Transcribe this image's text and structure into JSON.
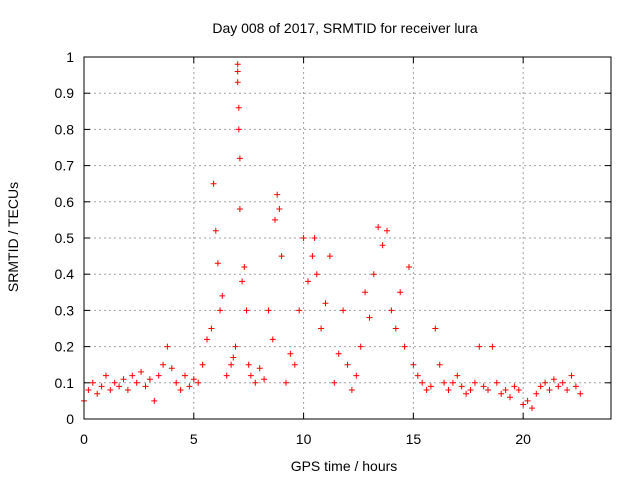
{
  "chart_data": {
    "type": "scatter",
    "title": "Day 008 of 2017, SRMTID for receiver lura",
    "xlabel": "GPS time / hours",
    "ylabel": "SRMTID / TECUs",
    "xlim": [
      0,
      24
    ],
    "ylim": [
      0,
      1
    ],
    "xticks": [
      0,
      5,
      10,
      15,
      20
    ],
    "xtick_labels": [
      "0",
      "5",
      "10",
      "15",
      "20"
    ],
    "yticks": [
      0,
      0.1,
      0.2,
      0.3,
      0.4,
      0.5,
      0.6,
      0.7,
      0.8,
      0.9,
      1
    ],
    "ytick_labels": [
      "0",
      "0.1",
      "0.2",
      "0.3",
      "0.4",
      "0.5",
      "0.6",
      "0.7",
      "0.8",
      "0.9",
      "1"
    ],
    "grid": true,
    "legend": "none",
    "marker": "+",
    "series": [
      {
        "name": "SRMTID",
        "color": "#ff0000",
        "x": [
          0.0,
          0.2,
          0.4,
          0.6,
          0.8,
          1.0,
          1.2,
          1.4,
          1.6,
          1.8,
          2.0,
          2.2,
          2.4,
          2.6,
          2.8,
          3.0,
          3.2,
          3.4,
          3.6,
          3.8,
          4.0,
          4.2,
          4.4,
          4.6,
          4.8,
          5.0,
          5.2,
          5.4,
          5.6,
          5.8,
          5.9,
          6.0,
          6.1,
          6.2,
          6.3,
          6.5,
          6.7,
          6.8,
          6.9,
          7.0,
          7.0,
          7.0,
          7.05,
          7.05,
          7.1,
          7.1,
          7.2,
          7.3,
          7.4,
          7.5,
          7.6,
          7.8,
          8.0,
          8.2,
          8.4,
          8.6,
          8.7,
          8.8,
          8.9,
          9.0,
          9.2,
          9.4,
          9.6,
          9.8,
          10.0,
          10.2,
          10.4,
          10.5,
          10.6,
          10.8,
          11.0,
          11.2,
          11.4,
          11.6,
          11.8,
          12.0,
          12.2,
          12.4,
          12.6,
          12.8,
          13.0,
          13.2,
          13.4,
          13.6,
          13.8,
          14.0,
          14.2,
          14.4,
          14.6,
          14.8,
          15.0,
          15.2,
          15.4,
          15.6,
          15.8,
          16.0,
          16.2,
          16.4,
          16.6,
          16.8,
          17.0,
          17.2,
          17.4,
          17.6,
          17.8,
          18.0,
          18.2,
          18.4,
          18.6,
          18.8,
          19.0,
          19.2,
          19.4,
          19.6,
          19.8,
          20.0,
          20.2,
          20.4,
          20.6,
          20.8,
          21.0,
          21.2,
          21.4,
          21.6,
          21.8,
          22.0,
          22.2,
          22.4,
          22.6
        ],
        "y": [
          0.05,
          0.08,
          0.1,
          0.07,
          0.09,
          0.12,
          0.08,
          0.1,
          0.09,
          0.11,
          0.08,
          0.12,
          0.1,
          0.13,
          0.09,
          0.11,
          0.05,
          0.12,
          0.15,
          0.2,
          0.14,
          0.1,
          0.08,
          0.12,
          0.09,
          0.11,
          0.1,
          0.15,
          0.22,
          0.25,
          0.65,
          0.52,
          0.43,
          0.3,
          0.34,
          0.12,
          0.15,
          0.17,
          0.2,
          0.98,
          0.96,
          0.93,
          0.86,
          0.8,
          0.72,
          0.58,
          0.38,
          0.42,
          0.3,
          0.15,
          0.12,
          0.1,
          0.14,
          0.11,
          0.3,
          0.22,
          0.55,
          0.62,
          0.58,
          0.45,
          0.1,
          0.18,
          0.15,
          0.3,
          0.5,
          0.38,
          0.45,
          0.5,
          0.4,
          0.25,
          0.32,
          0.45,
          0.1,
          0.18,
          0.3,
          0.15,
          0.08,
          0.12,
          0.2,
          0.35,
          0.28,
          0.4,
          0.53,
          0.48,
          0.52,
          0.3,
          0.25,
          0.35,
          0.2,
          0.42,
          0.15,
          0.12,
          0.1,
          0.08,
          0.09,
          0.25,
          0.15,
          0.1,
          0.08,
          0.1,
          0.12,
          0.09,
          0.07,
          0.08,
          0.1,
          0.2,
          0.09,
          0.08,
          0.2,
          0.1,
          0.07,
          0.08,
          0.06,
          0.09,
          0.08,
          0.04,
          0.05,
          0.03,
          0.07,
          0.09,
          0.1,
          0.08,
          0.11,
          0.09,
          0.1,
          0.08,
          0.12,
          0.09,
          0.07
        ]
      }
    ]
  }
}
